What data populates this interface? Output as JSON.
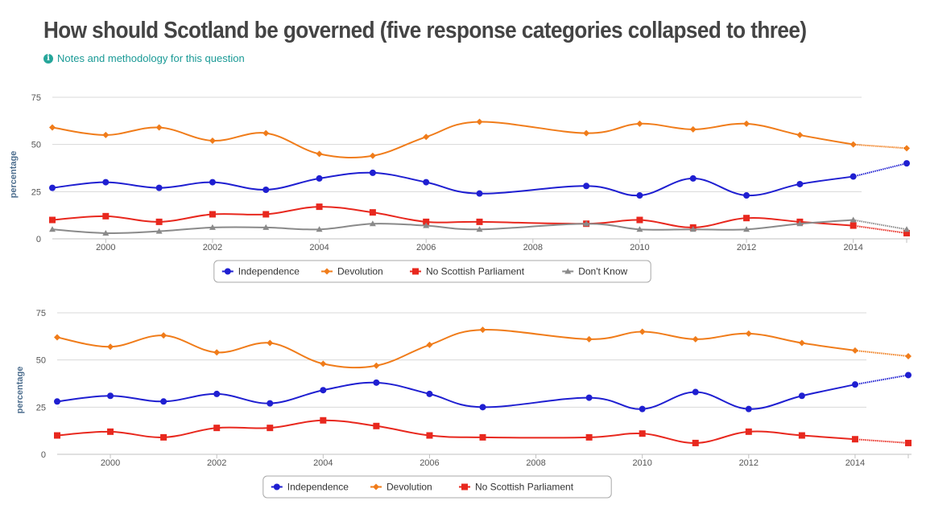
{
  "page": {
    "title": "How should Scotland be governed (five response categories collapsed to three)",
    "notes_link": "Notes and methodology for this question",
    "info_icon": "info-icon"
  },
  "chart_data": [
    {
      "type": "line",
      "ylabel": "percentage",
      "xlabel": "",
      "xlim": [
        1999,
        2015
      ],
      "ylim": [
        0,
        75
      ],
      "y_ticks": [
        0,
        25,
        50,
        75
      ],
      "x_ticks": [
        2000,
        2002,
        2004,
        2006,
        2008,
        2010,
        2012,
        2014
      ],
      "grid": true,
      "legend_position": "bottom",
      "x": [
        1999,
        2000,
        2001,
        2002,
        2003,
        2004,
        2005,
        2006,
        2007,
        2009,
        2010,
        2011,
        2012,
        2013,
        2014,
        2015
      ],
      "series": [
        {
          "name": "Independence",
          "color": "#1f1fd1",
          "marker": "circle",
          "values": [
            27,
            30,
            27,
            30,
            26,
            32,
            35,
            30,
            24,
            28,
            23,
            32,
            23,
            29,
            33,
            40
          ]
        },
        {
          "name": "Devolution",
          "color": "#f07c1a",
          "marker": "diamond",
          "values": [
            59,
            55,
            59,
            52,
            56,
            45,
            44,
            54,
            62,
            56,
            61,
            58,
            61,
            55,
            50,
            48
          ]
        },
        {
          "name": "No Scottish Parliament",
          "color": "#e8281e",
          "marker": "square",
          "values": [
            10,
            12,
            9,
            13,
            13,
            17,
            14,
            9,
            9,
            8,
            10,
            6,
            11,
            9,
            7,
            3
          ]
        },
        {
          "name": "Don't Know",
          "color": "#8a8a8a",
          "marker": "triangle",
          "values": [
            5,
            3,
            4,
            6,
            6,
            5,
            8,
            7,
            5,
            8,
            5,
            5,
            5,
            8,
            10,
            5
          ]
        }
      ]
    },
    {
      "type": "line",
      "ylabel": "percentage",
      "xlabel": "",
      "xlim": [
        1999,
        2015
      ],
      "ylim": [
        0,
        75
      ],
      "y_ticks": [
        0,
        25,
        50,
        75
      ],
      "x_ticks": [
        2000,
        2002,
        2004,
        2006,
        2008,
        2010,
        2012,
        2014
      ],
      "grid": true,
      "legend_position": "bottom",
      "x": [
        1999,
        2000,
        2001,
        2002,
        2003,
        2004,
        2005,
        2006,
        2007,
        2009,
        2010,
        2011,
        2012,
        2013,
        2014,
        2015
      ],
      "series": [
        {
          "name": "Independence",
          "color": "#1f1fd1",
          "marker": "circle",
          "values": [
            28,
            31,
            28,
            32,
            27,
            34,
            38,
            32,
            25,
            30,
            24,
            33,
            24,
            31,
            37,
            42
          ]
        },
        {
          "name": "Devolution",
          "color": "#f07c1a",
          "marker": "diamond",
          "values": [
            62,
            57,
            63,
            54,
            59,
            48,
            47,
            58,
            66,
            61,
            65,
            61,
            64,
            59,
            55,
            52
          ]
        },
        {
          "name": "No Scottish Parliament",
          "color": "#e8281e",
          "marker": "square",
          "values": [
            10,
            12,
            9,
            14,
            14,
            18,
            15,
            10,
            9,
            9,
            11,
            6,
            12,
            10,
            8,
            6
          ]
        }
      ]
    }
  ]
}
